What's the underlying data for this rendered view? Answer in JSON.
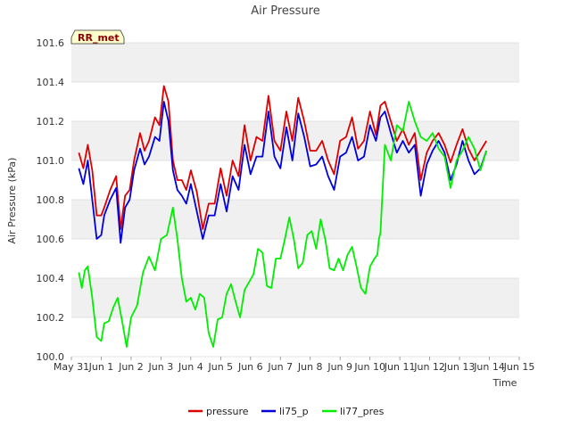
{
  "chart_data": {
    "type": "line",
    "title": "Air Pressure",
    "xlabel": "Time",
    "ylabel": "Air Pressure (kPa)",
    "site_label": "RR_met",
    "xlim": [
      0,
      15
    ],
    "ylim": [
      100.0,
      101.6
    ],
    "x_ticks": [
      0,
      1,
      2,
      3,
      4,
      5,
      6,
      7,
      8,
      9,
      10,
      11,
      12,
      13,
      14,
      15
    ],
    "x_tick_labels": [
      "May 31",
      "Jun 1",
      "Jun 2",
      "Jun 3",
      "Jun 4",
      "Jun 5",
      "Jun 6",
      "Jun 7",
      "Jun 8",
      "Jun 9",
      "Jun 10",
      "Jun 11",
      "Jun 12",
      "Jun 13",
      "Jun 14",
      "Jun 15"
    ],
    "y_ticks": [
      100.0,
      100.2,
      100.4,
      100.6,
      100.8,
      101.0,
      101.2,
      101.4,
      101.6
    ],
    "y_tick_labels": [
      "100.0",
      "100.2",
      "100.4",
      "100.6",
      "100.8",
      "101.0",
      "101.2",
      "101.4",
      "101.6"
    ],
    "background_bands": true,
    "legend_position": "bottom-center",
    "series": [
      {
        "name": "pressure",
        "color": "#dd0000",
        "x": [
          0.25,
          0.4,
          0.55,
          0.7,
          0.85,
          1.0,
          1.1,
          1.3,
          1.5,
          1.65,
          1.8,
          1.95,
          2.1,
          2.3,
          2.45,
          2.6,
          2.8,
          2.95,
          3.1,
          3.25,
          3.4,
          3.55,
          3.7,
          3.85,
          4.0,
          4.2,
          4.4,
          4.6,
          4.8,
          5.0,
          5.2,
          5.4,
          5.6,
          5.8,
          6.0,
          6.2,
          6.4,
          6.6,
          6.8,
          7.0,
          7.2,
          7.4,
          7.6,
          7.8,
          8.0,
          8.2,
          8.4,
          8.6,
          8.8,
          9.0,
          9.2,
          9.4,
          9.6,
          9.8,
          10.0,
          10.2,
          10.35,
          10.5,
          10.7,
          10.9,
          11.1,
          11.3,
          11.5,
          11.7,
          11.9,
          12.1,
          12.3,
          12.5,
          12.7,
          12.9,
          13.1,
          13.3,
          13.5,
          13.7,
          13.9
        ],
        "y": [
          101.04,
          100.96,
          101.08,
          100.95,
          100.72,
          100.72,
          100.76,
          100.85,
          100.92,
          100.65,
          100.82,
          100.85,
          101.0,
          101.14,
          101.05,
          101.1,
          101.22,
          101.18,
          101.38,
          101.3,
          101.0,
          100.9,
          100.9,
          100.85,
          100.95,
          100.84,
          100.65,
          100.78,
          100.78,
          100.96,
          100.82,
          101.0,
          100.92,
          101.18,
          101.0,
          101.12,
          101.1,
          101.33,
          101.1,
          101.05,
          101.25,
          101.1,
          101.32,
          101.2,
          101.05,
          101.05,
          101.1,
          101.0,
          100.93,
          101.1,
          101.12,
          101.22,
          101.06,
          101.1,
          101.25,
          101.13,
          101.28,
          101.3,
          101.2,
          101.1,
          101.16,
          101.08,
          101.14,
          100.9,
          101.04,
          101.1,
          101.14,
          101.08,
          100.99,
          101.08,
          101.16,
          101.06,
          101.0,
          101.05,
          101.1
        ]
      },
      {
        "name": "li75_p",
        "color": "#0000dd",
        "x": [
          0.25,
          0.4,
          0.55,
          0.7,
          0.85,
          1.0,
          1.1,
          1.3,
          1.5,
          1.65,
          1.8,
          1.95,
          2.1,
          2.3,
          2.45,
          2.6,
          2.8,
          2.95,
          3.1,
          3.25,
          3.4,
          3.55,
          3.7,
          3.85,
          4.0,
          4.2,
          4.4,
          4.6,
          4.8,
          5.0,
          5.2,
          5.4,
          5.6,
          5.8,
          6.0,
          6.2,
          6.4,
          6.6,
          6.8,
          7.0,
          7.2,
          7.4,
          7.6,
          7.8,
          8.0,
          8.2,
          8.4,
          8.6,
          8.8,
          9.0,
          9.2,
          9.4,
          9.6,
          9.8,
          10.0,
          10.2,
          10.35,
          10.5,
          10.7,
          10.9,
          11.1,
          11.3,
          11.5,
          11.7,
          11.9,
          12.1,
          12.3,
          12.5,
          12.7,
          12.9,
          13.1,
          13.3,
          13.5,
          13.7,
          13.9
        ],
        "y": [
          100.96,
          100.88,
          101.0,
          100.8,
          100.6,
          100.62,
          100.72,
          100.8,
          100.86,
          100.58,
          100.76,
          100.8,
          100.95,
          101.06,
          100.98,
          101.02,
          101.12,
          101.1,
          101.3,
          101.2,
          100.95,
          100.85,
          100.82,
          100.78,
          100.88,
          100.74,
          100.6,
          100.72,
          100.72,
          100.88,
          100.74,
          100.92,
          100.85,
          101.08,
          100.93,
          101.02,
          101.02,
          101.25,
          101.02,
          100.96,
          101.17,
          101.0,
          101.24,
          101.12,
          100.97,
          100.98,
          101.02,
          100.92,
          100.85,
          101.02,
          101.04,
          101.12,
          101.0,
          101.02,
          101.18,
          101.1,
          101.22,
          101.25,
          101.14,
          101.04,
          101.1,
          101.04,
          101.08,
          100.82,
          100.98,
          101.05,
          101.1,
          101.04,
          100.9,
          100.98,
          101.1,
          101.0,
          100.93,
          100.96,
          101.05
        ]
      },
      {
        "name": "li77_pres",
        "color": "#00ee00",
        "x": [
          0.25,
          0.35,
          0.45,
          0.55,
          0.7,
          0.85,
          1.0,
          1.1,
          1.25,
          1.4,
          1.55,
          1.7,
          1.85,
          2.0,
          2.2,
          2.4,
          2.6,
          2.8,
          3.0,
          3.2,
          3.4,
          3.55,
          3.7,
          3.85,
          4.0,
          4.15,
          4.3,
          4.45,
          4.6,
          4.75,
          4.9,
          5.05,
          5.2,
          5.35,
          5.5,
          5.65,
          5.8,
          5.95,
          6.1,
          6.25,
          6.4,
          6.55,
          6.7,
          6.85,
          7.0,
          7.15,
          7.3,
          7.45,
          7.6,
          7.75,
          7.9,
          8.05,
          8.2,
          8.35,
          8.5,
          8.65,
          8.8,
          8.95,
          9.1,
          9.25,
          9.4,
          9.55,
          9.7,
          9.85,
          10.0,
          10.15,
          10.25,
          10.3,
          10.35,
          10.5,
          10.7,
          10.9,
          11.1,
          11.3,
          11.5,
          11.7,
          11.9,
          12.1,
          12.3,
          12.5,
          12.7,
          12.9,
          13.1,
          13.3,
          13.5,
          13.7,
          13.9
        ],
        "y": [
          100.43,
          100.35,
          100.44,
          100.46,
          100.3,
          100.1,
          100.08,
          100.17,
          100.18,
          100.25,
          100.3,
          100.18,
          100.05,
          100.2,
          100.26,
          100.43,
          100.51,
          100.44,
          100.6,
          100.62,
          100.76,
          100.6,
          100.4,
          100.28,
          100.3,
          100.24,
          100.32,
          100.3,
          100.12,
          100.05,
          100.19,
          100.2,
          100.32,
          100.37,
          100.28,
          100.2,
          100.34,
          100.38,
          100.42,
          100.55,
          100.53,
          100.36,
          100.35,
          100.5,
          100.5,
          100.6,
          100.71,
          100.6,
          100.45,
          100.48,
          100.62,
          100.64,
          100.55,
          100.7,
          100.6,
          100.45,
          100.44,
          100.5,
          100.44,
          100.52,
          100.56,
          100.46,
          100.35,
          100.32,
          100.46,
          100.5,
          100.52,
          100.6,
          100.63,
          101.08,
          101.0,
          101.18,
          101.15,
          101.3,
          101.2,
          101.12,
          101.1,
          101.14,
          101.06,
          101.02,
          100.86,
          101.0,
          101.05,
          101.12,
          101.06,
          100.95,
          101.05
        ]
      }
    ]
  }
}
